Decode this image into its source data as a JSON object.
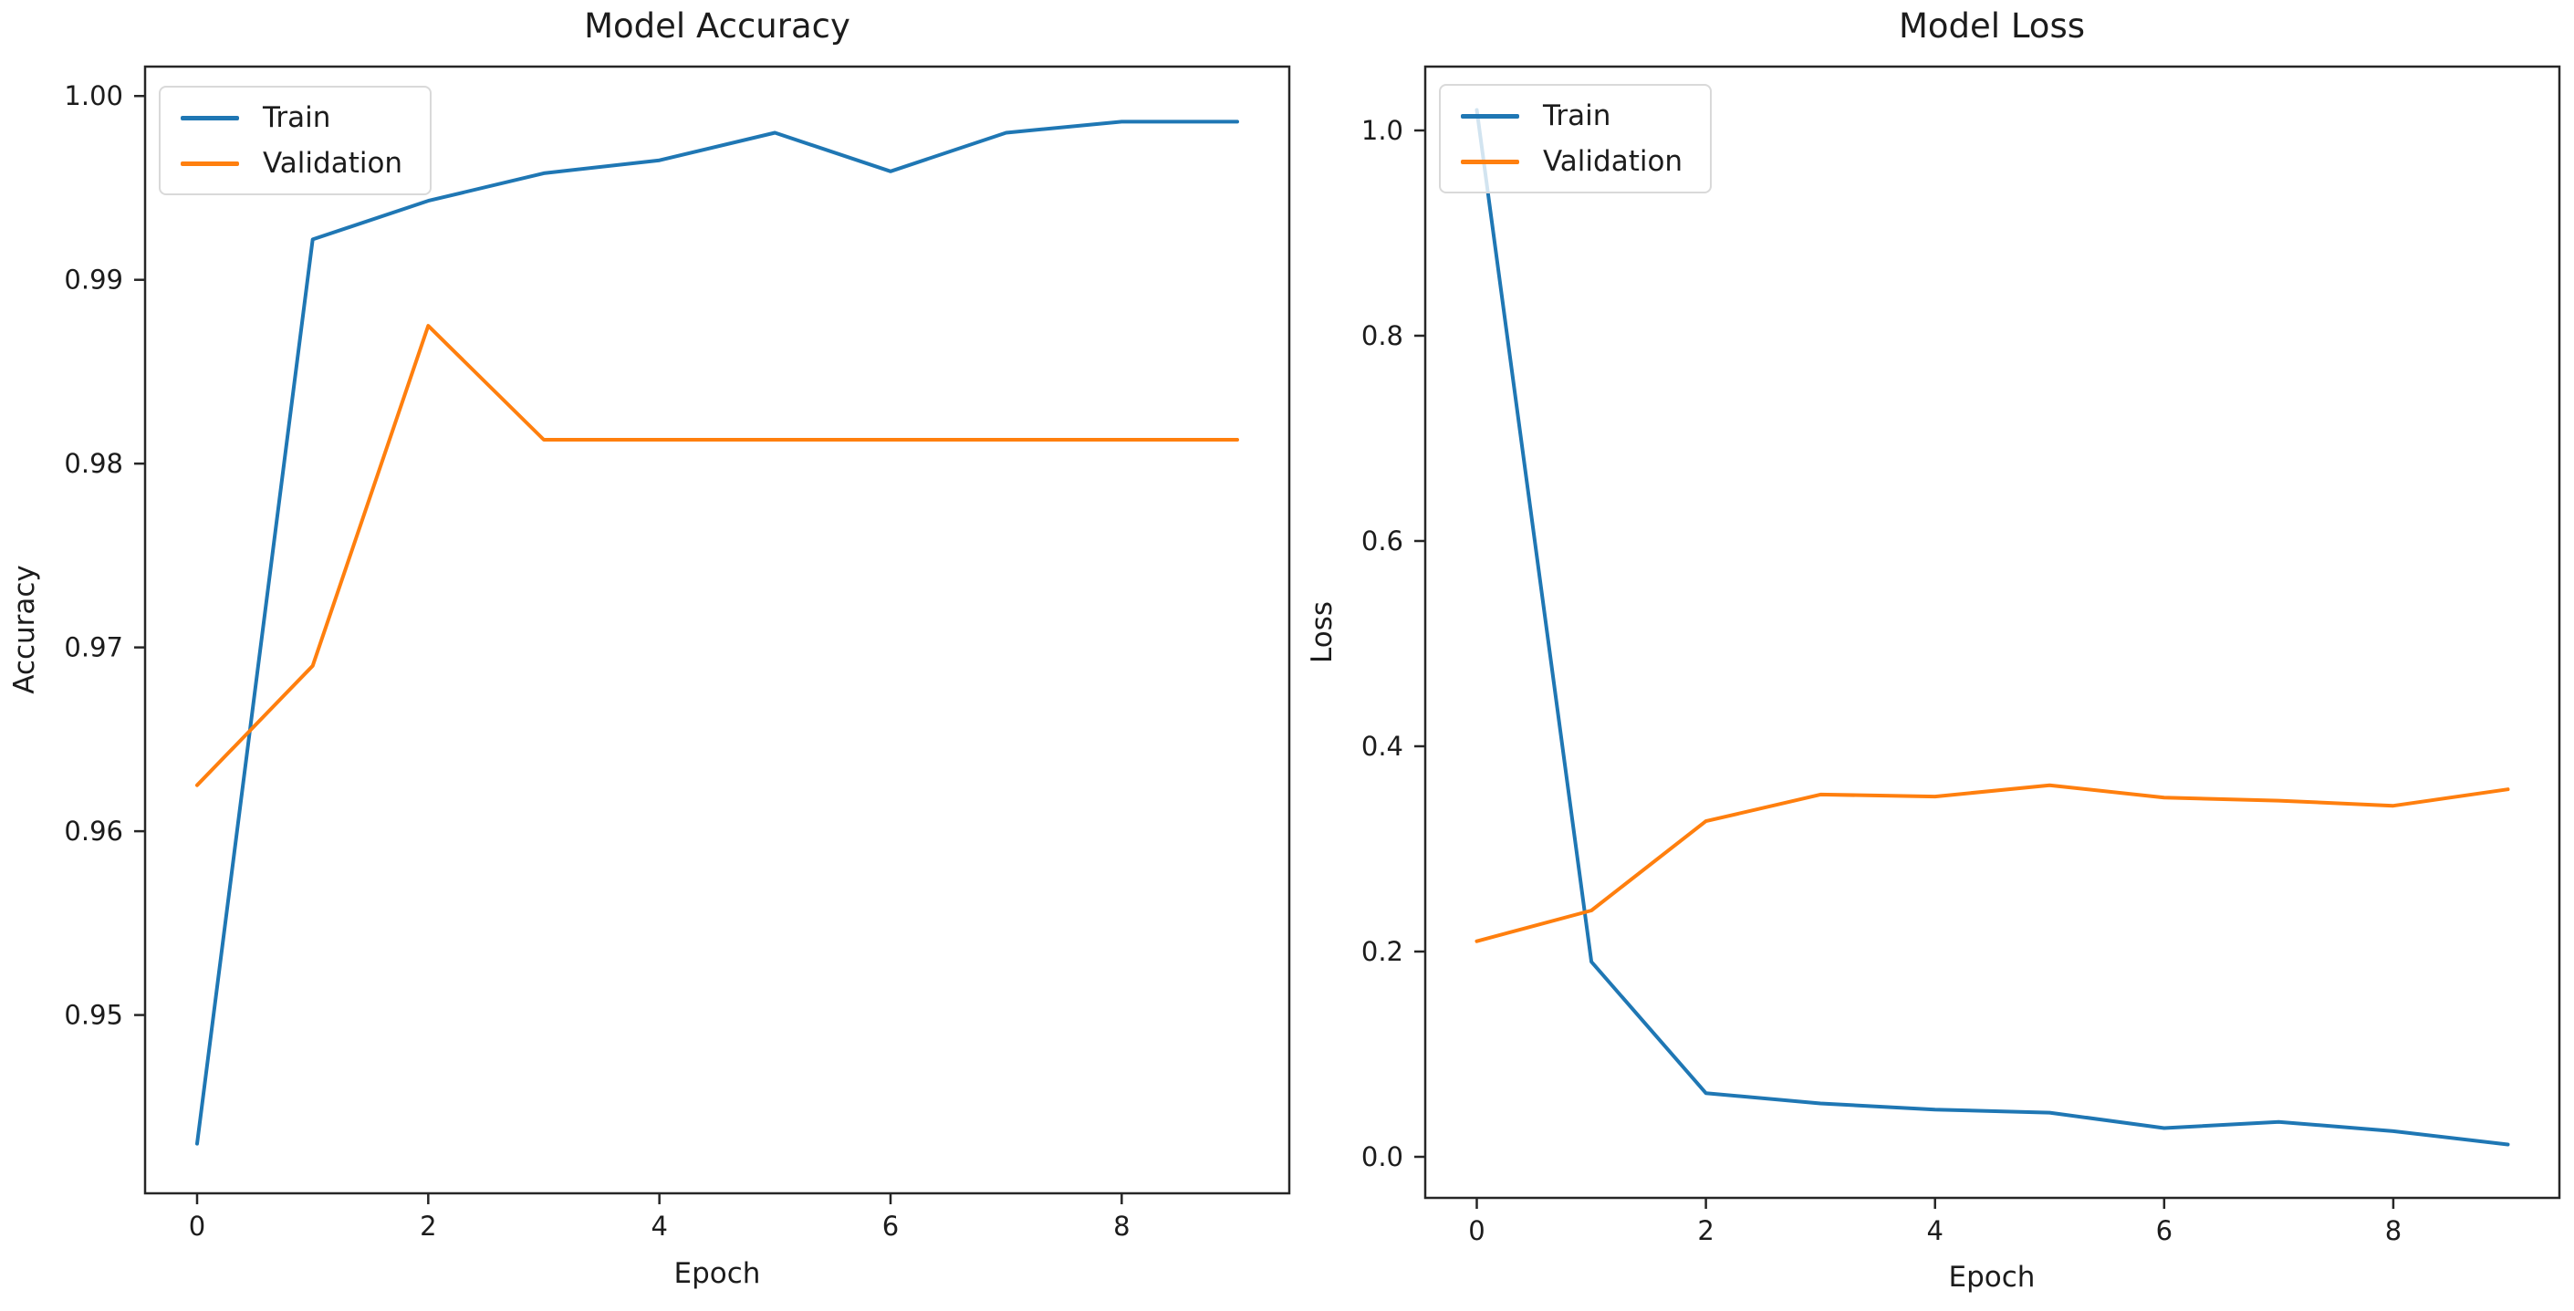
{
  "figure": {
    "background": "#ffffff",
    "text_color": "#1c1c1c",
    "spine_color": "#262626",
    "legend_border_color": "#d9d9d9"
  },
  "chart_data": [
    {
      "id": "model-accuracy",
      "type": "line",
      "title": "Model Accuracy",
      "xlabel": "Epoch",
      "ylabel": "Accuracy",
      "x": [
        0,
        1,
        2,
        3,
        4,
        5,
        6,
        7,
        8,
        9
      ],
      "series": [
        {
          "name": "Train",
          "color": "#1f77b4",
          "values": [
            0.943,
            0.9922,
            0.9943,
            0.9958,
            0.9965,
            0.998,
            0.9959,
            0.998,
            0.9986,
            0.9986
          ]
        },
        {
          "name": "Validation",
          "color": "#ff7f0e",
          "values": [
            0.9625,
            0.969,
            0.9875,
            0.9813,
            0.9813,
            0.9813,
            0.9813,
            0.9813,
            0.9813,
            0.9813
          ]
        }
      ],
      "xlim": [
        -0.45,
        9.45
      ],
      "ylim": [
        0.9403,
        1.0016
      ],
      "xticks": {
        "values": [
          0,
          2,
          4,
          6,
          8
        ],
        "labels": [
          "0",
          "2",
          "4",
          "6",
          "8"
        ]
      },
      "yticks": {
        "values": [
          0.95,
          0.96,
          0.97,
          0.98,
          0.99,
          1.0
        ],
        "labels": [
          "0.95",
          "0.96",
          "0.97",
          "0.98",
          "0.99",
          "1.00"
        ]
      },
      "legend": {
        "position": "upper left",
        "entries": [
          "Train",
          "Validation"
        ]
      },
      "grid": false
    },
    {
      "id": "model-loss",
      "type": "line",
      "title": "Model Loss",
      "xlabel": "Epoch",
      "ylabel": "Loss",
      "x": [
        0,
        1,
        2,
        3,
        4,
        5,
        6,
        7,
        8,
        9
      ],
      "series": [
        {
          "name": "Train",
          "color": "#1f77b4",
          "values": [
            1.02,
            0.19,
            0.062,
            0.052,
            0.046,
            0.043,
            0.028,
            0.034,
            0.025,
            0.012
          ]
        },
        {
          "name": "Validation",
          "color": "#ff7f0e",
          "values": [
            0.21,
            0.24,
            0.327,
            0.353,
            0.351,
            0.362,
            0.35,
            0.347,
            0.342,
            0.358
          ]
        }
      ],
      "xlim": [
        -0.45,
        9.45
      ],
      "ylim": [
        -0.04,
        1.0622
      ],
      "xticks": {
        "values": [
          0,
          2,
          4,
          6,
          8
        ],
        "labels": [
          "0",
          "2",
          "4",
          "6",
          "8"
        ]
      },
      "yticks": {
        "values": [
          0.0,
          0.2,
          0.4,
          0.6,
          0.8,
          1.0
        ],
        "labels": [
          "0.0",
          "0.2",
          "0.4",
          "0.6",
          "0.8",
          "1.0"
        ]
      },
      "legend": {
        "position": "upper left",
        "entries": [
          "Train",
          "Validation"
        ]
      },
      "grid": false
    }
  ]
}
